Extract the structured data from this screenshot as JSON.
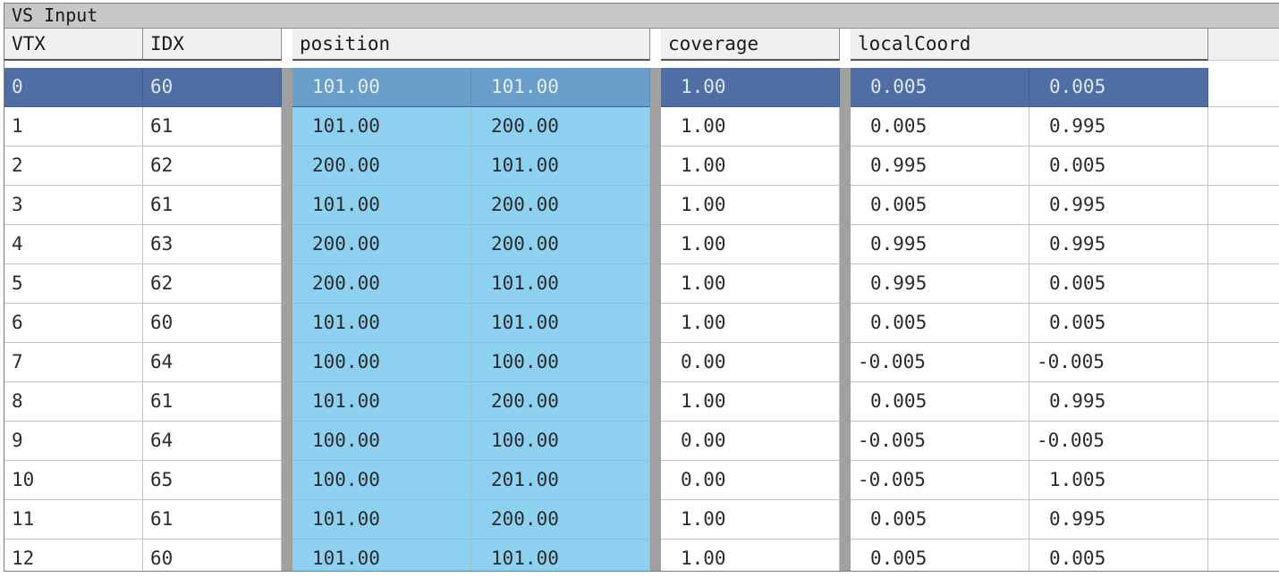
{
  "panel": {
    "title": "VS Input"
  },
  "columns": {
    "vtx": "VTX",
    "idx": "IDX",
    "position": "position",
    "coverage": "coverage",
    "localCoord": "localCoord"
  },
  "selected_row": 0,
  "rows": [
    {
      "vtx": "0",
      "idx": "60",
      "pos_x": "101.00",
      "pos_y": "101.00",
      "coverage": "1.00",
      "lc_x": "0.005",
      "lc_y": "0.005"
    },
    {
      "vtx": "1",
      "idx": "61",
      "pos_x": "101.00",
      "pos_y": "200.00",
      "coverage": "1.00",
      "lc_x": "0.005",
      "lc_y": "0.995"
    },
    {
      "vtx": "2",
      "idx": "62",
      "pos_x": "200.00",
      "pos_y": "101.00",
      "coverage": "1.00",
      "lc_x": "0.995",
      "lc_y": "0.005"
    },
    {
      "vtx": "3",
      "idx": "61",
      "pos_x": "101.00",
      "pos_y": "200.00",
      "coverage": "1.00",
      "lc_x": "0.005",
      "lc_y": "0.995"
    },
    {
      "vtx": "4",
      "idx": "63",
      "pos_x": "200.00",
      "pos_y": "200.00",
      "coverage": "1.00",
      "lc_x": "0.995",
      "lc_y": "0.995"
    },
    {
      "vtx": "5",
      "idx": "62",
      "pos_x": "200.00",
      "pos_y": "101.00",
      "coverage": "1.00",
      "lc_x": "0.995",
      "lc_y": "0.005"
    },
    {
      "vtx": "6",
      "idx": "60",
      "pos_x": "101.00",
      "pos_y": "101.00",
      "coverage": "1.00",
      "lc_x": "0.005",
      "lc_y": "0.005"
    },
    {
      "vtx": "7",
      "idx": "64",
      "pos_x": "100.00",
      "pos_y": "100.00",
      "coverage": "0.00",
      "lc_x": "-0.005",
      "lc_y": "-0.005"
    },
    {
      "vtx": "8",
      "idx": "61",
      "pos_x": "101.00",
      "pos_y": "200.00",
      "coverage": "1.00",
      "lc_x": "0.005",
      "lc_y": "0.995"
    },
    {
      "vtx": "9",
      "idx": "64",
      "pos_x": "100.00",
      "pos_y": "100.00",
      "coverage": "0.00",
      "lc_x": "-0.005",
      "lc_y": "-0.005"
    },
    {
      "vtx": "10",
      "idx": "65",
      "pos_x": "100.00",
      "pos_y": "201.00",
      "coverage": "0.00",
      "lc_x": "-0.005",
      "lc_y": "1.005"
    },
    {
      "vtx": "11",
      "idx": "61",
      "pos_x": "101.00",
      "pos_y": "200.00",
      "coverage": "1.00",
      "lc_x": "0.005",
      "lc_y": "0.995"
    },
    {
      "vtx": "12",
      "idx": "60",
      "pos_x": "101.00",
      "pos_y": "101.00",
      "coverage": "1.00",
      "lc_x": "0.005",
      "lc_y": "0.005"
    }
  ],
  "colors": {
    "selected_row": "#4f6fa4",
    "position_column": "#8ed0f0",
    "selected_position": "#6a9ecb",
    "title_bar": "#c8c8c8",
    "column_separator": "#a0a0a0"
  }
}
